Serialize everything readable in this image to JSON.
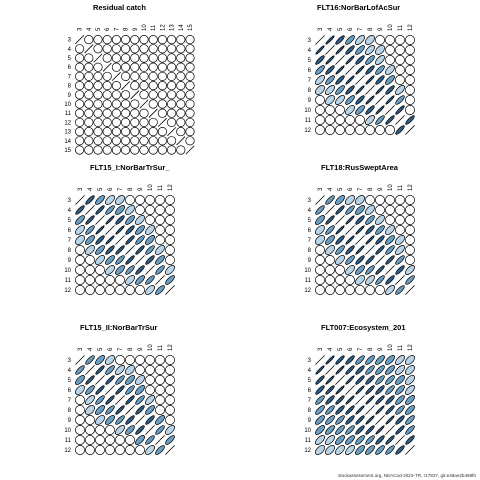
{
  "footer": "stockassessment.org, NEACod-2023-TR, r17837, git:e38ae2b498f0",
  "colors": {
    "strong": "#2f5f8a",
    "medium": "#6a9ec3",
    "light": "#b9d4e6",
    "outline": "#000000",
    "background": "#ffffff"
  },
  "chart_data": [
    {
      "type": "heatmap",
      "title": "Residual catch",
      "ages": [
        3,
        4,
        5,
        6,
        7,
        8,
        9,
        10,
        11,
        12,
        13,
        14,
        15
      ],
      "cells": [
        [
          3,
          4,
          0
        ],
        [
          3,
          5,
          0
        ],
        [
          3,
          6,
          0
        ],
        [
          4,
          5,
          0
        ],
        [
          4,
          6,
          0
        ],
        [
          4,
          7,
          0
        ],
        [
          5,
          6,
          0
        ],
        [
          5,
          7,
          0
        ],
        [
          6,
          7,
          0
        ],
        [
          6,
          8,
          0
        ],
        [
          7,
          8,
          0
        ],
        [
          7,
          9,
          0
        ],
        [
          8,
          9,
          0
        ],
        [
          8,
          10,
          0
        ],
        [
          9,
          10,
          0
        ],
        [
          9,
          11,
          0
        ],
        [
          10,
          11,
          0
        ],
        [
          11,
          12,
          0
        ],
        [
          12,
          13,
          0
        ],
        [
          13,
          14,
          0
        ],
        [
          14,
          15,
          0
        ]
      ]
    },
    {
      "type": "heatmap",
      "title": "FLT16:NorBarLofAcSur",
      "ages": [
        3,
        4,
        5,
        6,
        7,
        8,
        9,
        10,
        11,
        12
      ],
      "cells": [
        [
          3,
          4,
          0.95
        ],
        [
          3,
          5,
          0.85
        ],
        [
          3,
          6,
          0.75
        ],
        [
          3,
          7,
          0.6
        ],
        [
          3,
          8,
          0.45
        ],
        [
          4,
          5,
          0.95
        ],
        [
          4,
          6,
          0.85
        ],
        [
          4,
          7,
          0.75
        ],
        [
          4,
          8,
          0.6
        ],
        [
          4,
          9,
          0.45
        ],
        [
          5,
          6,
          0.95
        ],
        [
          5,
          7,
          0.85
        ],
        [
          5,
          8,
          0.75
        ],
        [
          5,
          9,
          0.6
        ],
        [
          6,
          7,
          0.95
        ],
        [
          6,
          8,
          0.85
        ],
        [
          6,
          9,
          0.75
        ],
        [
          6,
          10,
          0.55
        ],
        [
          7,
          8,
          0.95
        ],
        [
          7,
          9,
          0.85
        ],
        [
          7,
          10,
          0.7
        ],
        [
          8,
          9,
          0.95
        ],
        [
          8,
          10,
          0.85
        ],
        [
          8,
          11,
          0.6
        ],
        [
          9,
          10,
          0.95
        ],
        [
          9,
          11,
          0.8
        ],
        [
          10,
          11,
          0.9
        ],
        [
          11,
          12,
          0.85
        ]
      ]
    },
    {
      "type": "heatmap",
      "title": "FLT15_I:NorBarTrSur_",
      "ages": [
        3,
        4,
        5,
        6,
        7,
        8,
        9,
        10,
        11,
        12
      ],
      "cells": [
        [
          3,
          4,
          0.85
        ],
        [
          3,
          5,
          0.7
        ],
        [
          3,
          6,
          0.55
        ],
        [
          3,
          7,
          0.45
        ],
        [
          4,
          5,
          0.9
        ],
        [
          4,
          6,
          0.8
        ],
        [
          4,
          7,
          0.65
        ],
        [
          4,
          8,
          0.5
        ],
        [
          5,
          6,
          0.95
        ],
        [
          5,
          7,
          0.85
        ],
        [
          5,
          8,
          0.7
        ],
        [
          5,
          9,
          0.55
        ],
        [
          6,
          7,
          0.95
        ],
        [
          6,
          8,
          0.85
        ],
        [
          6,
          9,
          0.7
        ],
        [
          6,
          10,
          0.55
        ],
        [
          7,
          8,
          0.9
        ],
        [
          7,
          9,
          0.8
        ],
        [
          7,
          10,
          0.65
        ],
        [
          8,
          9,
          0.9
        ],
        [
          8,
          10,
          0.8
        ],
        [
          8,
          11,
          0.55
        ],
        [
          9,
          10,
          0.85
        ],
        [
          9,
          11,
          0.7
        ],
        [
          10,
          11,
          0.8
        ],
        [
          10,
          12,
          0.55
        ],
        [
          11,
          12,
          0.75
        ]
      ]
    },
    {
      "type": "heatmap",
      "title": "FLT18:RusSweptArea",
      "ages": [
        3,
        4,
        5,
        6,
        7,
        8,
        9,
        10,
        11,
        12
      ],
      "cells": [
        [
          3,
          4,
          0.8
        ],
        [
          3,
          5,
          0.65
        ],
        [
          3,
          6,
          0.5
        ],
        [
          3,
          7,
          0.4
        ],
        [
          4,
          5,
          0.9
        ],
        [
          4,
          6,
          0.8
        ],
        [
          4,
          7,
          0.65
        ],
        [
          4,
          8,
          0.5
        ],
        [
          5,
          6,
          0.95
        ],
        [
          5,
          7,
          0.85
        ],
        [
          5,
          8,
          0.75
        ],
        [
          5,
          9,
          0.55
        ],
        [
          6,
          7,
          0.95
        ],
        [
          6,
          8,
          0.85
        ],
        [
          6,
          9,
          0.75
        ],
        [
          6,
          10,
          0.55
        ],
        [
          7,
          8,
          0.95
        ],
        [
          7,
          9,
          0.85
        ],
        [
          7,
          10,
          0.7
        ],
        [
          7,
          11,
          0.5
        ],
        [
          8,
          9,
          0.9
        ],
        [
          8,
          10,
          0.8
        ],
        [
          8,
          11,
          0.6
        ],
        [
          9,
          10,
          0.9
        ],
        [
          9,
          11,
          0.8
        ],
        [
          10,
          11,
          0.85
        ],
        [
          10,
          12,
          0.6
        ],
        [
          11,
          12,
          0.8
        ]
      ]
    },
    {
      "type": "heatmap",
      "title": "FLT15_II:NorBarTrSur",
      "ages": [
        3,
        4,
        5,
        6,
        7,
        8,
        9,
        10,
        11,
        12
      ],
      "cells": [
        [
          3,
          4,
          0.8
        ],
        [
          3,
          5,
          0.65
        ],
        [
          3,
          6,
          0.5
        ],
        [
          4,
          5,
          0.9
        ],
        [
          4,
          6,
          0.75
        ],
        [
          4,
          7,
          0.6
        ],
        [
          4,
          8,
          0.45
        ],
        [
          5,
          6,
          0.9
        ],
        [
          5,
          7,
          0.8
        ],
        [
          5,
          8,
          0.65
        ],
        [
          5,
          9,
          0.5
        ],
        [
          6,
          7,
          0.9
        ],
        [
          6,
          8,
          0.8
        ],
        [
          6,
          9,
          0.65
        ],
        [
          7,
          8,
          0.9
        ],
        [
          7,
          9,
          0.8
        ],
        [
          7,
          10,
          0.6
        ],
        [
          8,
          9,
          0.85
        ],
        [
          8,
          10,
          0.7
        ],
        [
          9,
          10,
          0.85
        ],
        [
          9,
          11,
          0.65
        ],
        [
          10,
          11,
          0.8
        ],
        [
          10,
          12,
          0.55
        ],
        [
          11,
          12,
          0.75
        ]
      ]
    },
    {
      "type": "heatmap",
      "title": "FLT007:Ecosystem_201",
      "ages": [
        3,
        4,
        5,
        6,
        7,
        8,
        9,
        10,
        11,
        12
      ],
      "cells": [
        [
          3,
          4,
          0.95
        ],
        [
          3,
          5,
          0.9
        ],
        [
          3,
          6,
          0.85
        ],
        [
          3,
          7,
          0.8
        ],
        [
          3,
          8,
          0.75
        ],
        [
          3,
          9,
          0.7
        ],
        [
          3,
          10,
          0.65
        ],
        [
          3,
          11,
          0.6
        ],
        [
          3,
          12,
          0.5
        ],
        [
          4,
          5,
          0.95
        ],
        [
          4,
          6,
          0.9
        ],
        [
          4,
          7,
          0.85
        ],
        [
          4,
          8,
          0.8
        ],
        [
          4,
          9,
          0.75
        ],
        [
          4,
          10,
          0.7
        ],
        [
          4,
          11,
          0.6
        ],
        [
          4,
          12,
          0.5
        ],
        [
          5,
          6,
          0.95
        ],
        [
          5,
          7,
          0.9
        ],
        [
          5,
          8,
          0.85
        ],
        [
          5,
          9,
          0.8
        ],
        [
          5,
          10,
          0.75
        ],
        [
          5,
          11,
          0.65
        ],
        [
          5,
          12,
          0.55
        ],
        [
          6,
          7,
          0.95
        ],
        [
          6,
          8,
          0.9
        ],
        [
          6,
          9,
          0.85
        ],
        [
          6,
          10,
          0.8
        ],
        [
          6,
          11,
          0.7
        ],
        [
          6,
          12,
          0.6
        ],
        [
          7,
          8,
          0.95
        ],
        [
          7,
          9,
          0.9
        ],
        [
          7,
          10,
          0.85
        ],
        [
          7,
          11,
          0.75
        ],
        [
          7,
          12,
          0.65
        ],
        [
          8,
          9,
          0.95
        ],
        [
          8,
          10,
          0.9
        ],
        [
          8,
          11,
          0.8
        ],
        [
          8,
          12,
          0.7
        ],
        [
          9,
          10,
          0.95
        ],
        [
          9,
          11,
          0.85
        ],
        [
          9,
          12,
          0.75
        ],
        [
          10,
          11,
          0.9
        ],
        [
          10,
          12,
          0.8
        ],
        [
          11,
          12,
          0.85
        ]
      ]
    }
  ]
}
